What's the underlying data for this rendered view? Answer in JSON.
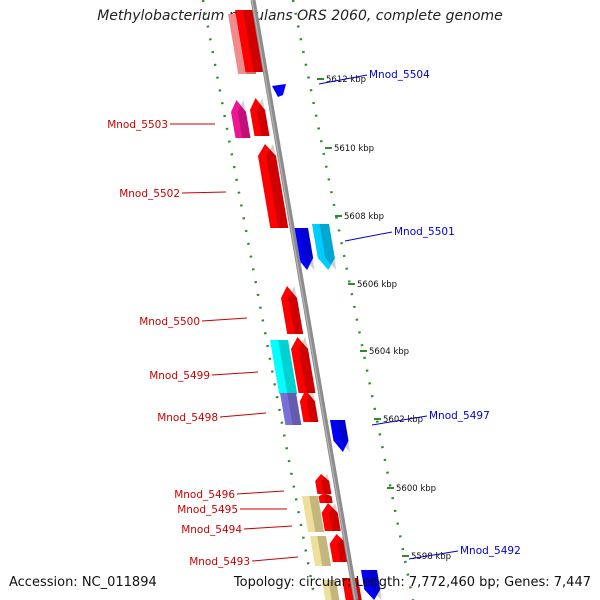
{
  "title": "Methylobacterium nodulans ORS 2060, complete genome",
  "footer": {
    "accession": "Accession: NC_011894",
    "summary": "Topology: circular; Length: 7,772,460 bp; Genes: 7,447"
  },
  "colors": {
    "backbone": "#8c8c8c",
    "tick_dash": "#2e8b2e",
    "label_minus": "#cc0000",
    "label_plus": "#0000cc"
  },
  "ticks": [
    {
      "label": "5612 kbp"
    },
    {
      "label": "5610 kbp"
    },
    {
      "label": "5608 kbp"
    },
    {
      "label": "5606 kbp"
    },
    {
      "label": "5604 kbp"
    },
    {
      "label": "5602 kbp"
    },
    {
      "label": "5600 kbp"
    },
    {
      "label": "5598 kbp"
    }
  ],
  "genes_left": [
    {
      "label": "Mnod_5503"
    },
    {
      "label": "Mnod_5502"
    },
    {
      "label": "Mnod_5500"
    },
    {
      "label": "Mnod_5499"
    },
    {
      "label": "Mnod_5498"
    },
    {
      "label": "Mnod_5496"
    },
    {
      "label": "Mnod_5495"
    },
    {
      "label": "Mnod_5494"
    },
    {
      "label": "Mnod_5493"
    }
  ],
  "genes_right": [
    {
      "label": "Mnod_5504"
    },
    {
      "label": "Mnod_5501"
    },
    {
      "label": "Mnod_5497"
    },
    {
      "label": "Mnod_5492"
    }
  ]
}
